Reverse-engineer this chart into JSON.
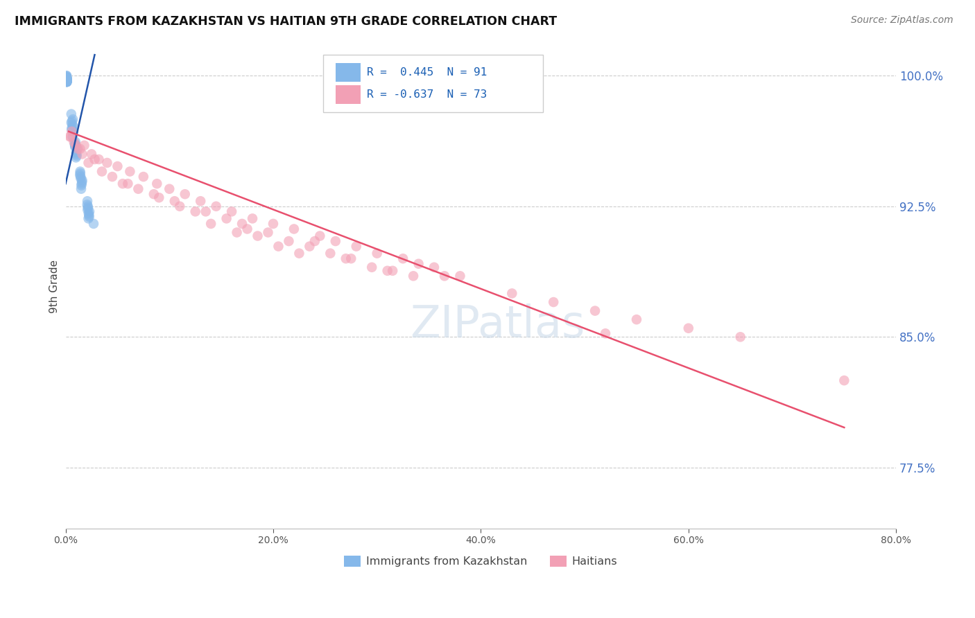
{
  "title": "IMMIGRANTS FROM KAZAKHSTAN VS HAITIAN 9TH GRADE CORRELATION CHART",
  "source_text": "Source: ZipAtlas.com",
  "ylabel": "9th Grade",
  "x_min": 0.0,
  "x_max": 80.0,
  "y_min": 74.0,
  "y_max": 101.8,
  "y_ticks": [
    77.5,
    85.0,
    92.5,
    100.0
  ],
  "y_tick_labels": [
    "77.5%",
    "85.0%",
    "92.5%",
    "100.0%"
  ],
  "x_ticks": [
    0.0,
    20.0,
    40.0,
    60.0,
    80.0
  ],
  "x_tick_labels": [
    "0.0%",
    "20.0%",
    "40.0%",
    "60.0%",
    "80.0%"
  ],
  "legend_blue_r": "R =  0.445",
  "legend_blue_n": "N = 91",
  "legend_pink_r": "R = -0.637",
  "legend_pink_n": "N = 73",
  "blue_color": "#85b8ea",
  "pink_color": "#f2a0b5",
  "blue_trend_color": "#2255aa",
  "pink_trend_color": "#e8506e",
  "watermark_color": "#c8d8e8",
  "blue_trend_x": [
    0.0,
    2.8
  ],
  "blue_trend_y": [
    93.8,
    101.2
  ],
  "pink_trend_x": [
    0.3,
    75.0
  ],
  "pink_trend_y": [
    96.8,
    79.8
  ],
  "blue_points_x": [
    0.08,
    0.1,
    0.12,
    0.1,
    0.09,
    0.11,
    0.08,
    0.1,
    0.12,
    0.09,
    0.1,
    0.11,
    0.09,
    0.08,
    0.1,
    0.12,
    0.11,
    0.09,
    0.1,
    0.08,
    0.1,
    0.09,
    0.11,
    0.1,
    0.08,
    0.12,
    0.09,
    0.1,
    0.11,
    0.08,
    0.1,
    0.09,
    0.12,
    0.11,
    0.1,
    0.08,
    0.09,
    0.1,
    0.11,
    0.08,
    0.1,
    0.09,
    0.12,
    0.11,
    0.08,
    0.1,
    0.09,
    0.11,
    0.1,
    0.12,
    0.55,
    0.65,
    0.7,
    0.6,
    0.75,
    0.55,
    0.68,
    0.72,
    0.62,
    0.58,
    0.9,
    1.05,
    1.1,
    0.95,
    1.0,
    0.88,
    1.02,
    0.96,
    1.08,
    0.92,
    1.4,
    1.55,
    1.6,
    1.45,
    1.5,
    1.38,
    1.52,
    1.46,
    1.58,
    1.42,
    2.1,
    2.25,
    2.3,
    2.15,
    2.2,
    2.08,
    2.22,
    2.16,
    2.28,
    2.12,
    2.7
  ],
  "blue_points_y": [
    99.85,
    100.0,
    99.7,
    99.9,
    99.8,
    99.75,
    100.0,
    99.85,
    99.65,
    99.9,
    99.8,
    99.75,
    99.9,
    99.85,
    99.7,
    99.8,
    99.75,
    99.9,
    99.8,
    99.85,
    99.7,
    99.9,
    99.75,
    99.8,
    99.85,
    99.65,
    99.9,
    99.8,
    99.75,
    99.85,
    99.7,
    99.9,
    99.65,
    99.75,
    99.8,
    99.85,
    99.9,
    99.7,
    99.75,
    99.8,
    99.85,
    99.9,
    99.65,
    99.75,
    99.8,
    99.85,
    99.9,
    99.7,
    99.75,
    99.65,
    97.8,
    97.2,
    97.5,
    97.0,
    96.8,
    97.3,
    96.5,
    97.1,
    97.4,
    96.9,
    96.0,
    95.5,
    95.8,
    96.2,
    95.3,
    96.1,
    95.6,
    96.0,
    95.4,
    95.9,
    94.5,
    93.8,
    94.0,
    94.2,
    93.5,
    94.3,
    93.7,
    94.1,
    93.9,
    94.4,
    92.8,
    92.0,
    92.2,
    92.5,
    91.8,
    92.6,
    92.1,
    92.4,
    91.9,
    92.3,
    91.5
  ],
  "pink_points_x": [
    0.4,
    0.8,
    1.2,
    1.8,
    2.5,
    3.2,
    4.0,
    5.0,
    6.2,
    7.5,
    8.8,
    10.0,
    11.5,
    13.0,
    14.5,
    16.0,
    18.0,
    20.0,
    22.0,
    24.5,
    26.0,
    28.0,
    30.0,
    32.5,
    34.0,
    0.6,
    1.0,
    1.6,
    2.2,
    3.5,
    5.5,
    7.0,
    9.0,
    11.0,
    13.5,
    15.5,
    17.5,
    19.5,
    21.5,
    23.5,
    25.5,
    27.5,
    29.5,
    31.5,
    33.5,
    0.5,
    1.4,
    2.8,
    4.5,
    6.0,
    8.5,
    10.5,
    12.5,
    14.0,
    16.5,
    18.5,
    20.5,
    22.5,
    27.0,
    31.0,
    35.5,
    38.0,
    43.0,
    47.0,
    51.0,
    55.0,
    60.0,
    65.0,
    52.0,
    75.0,
    17.0,
    24.0,
    36.5
  ],
  "pink_points_y": [
    96.5,
    96.2,
    95.8,
    96.0,
    95.5,
    95.2,
    95.0,
    94.8,
    94.5,
    94.2,
    93.8,
    93.5,
    93.2,
    92.8,
    92.5,
    92.2,
    91.8,
    91.5,
    91.2,
    90.8,
    90.5,
    90.2,
    89.8,
    89.5,
    89.2,
    96.8,
    96.0,
    95.5,
    95.0,
    94.5,
    93.8,
    93.5,
    93.0,
    92.5,
    92.2,
    91.8,
    91.2,
    91.0,
    90.5,
    90.2,
    89.8,
    89.5,
    89.0,
    88.8,
    88.5,
    96.5,
    95.8,
    95.2,
    94.2,
    93.8,
    93.2,
    92.8,
    92.2,
    91.5,
    91.0,
    90.8,
    90.2,
    89.8,
    89.5,
    88.8,
    89.0,
    88.5,
    87.5,
    87.0,
    86.5,
    86.0,
    85.5,
    85.0,
    85.2,
    82.5,
    91.5,
    90.5,
    88.5
  ]
}
